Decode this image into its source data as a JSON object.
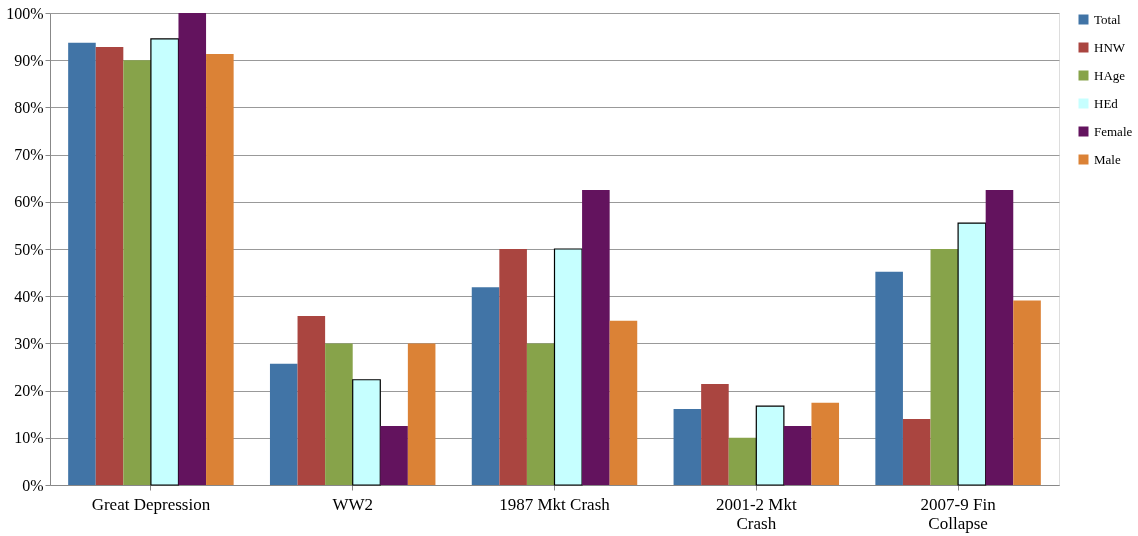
{
  "chart_data": {
    "type": "bar",
    "categories": [
      "Great Depression",
      "WW2",
      "1987 Mkt Crash",
      "2001-2 Mkt\nCrash",
      "2007-9 Fin\nCollapse"
    ],
    "series": [
      {
        "name": "Total",
        "color": "#4174a6",
        "values": [
          93.7,
          25.7,
          41.9,
          16.1,
          45.2
        ]
      },
      {
        "name": "HNW",
        "color": "#aa4540",
        "values": [
          92.8,
          35.8,
          50,
          21.4,
          14.0
        ]
      },
      {
        "name": "HAge",
        "color": "#87a34a",
        "values": [
          90,
          30,
          30,
          10,
          50
        ]
      },
      {
        "name": "HEd",
        "color": "#c6ffff",
        "values": [
          94.5,
          22.3,
          50,
          16.7,
          55.5
        ]
      },
      {
        "name": "Female",
        "color": "#63135e",
        "values": [
          100,
          12.5,
          62.5,
          12.5,
          62.5
        ]
      },
      {
        "name": "Male",
        "color": "#db8236",
        "values": [
          91.3,
          30,
          34.8,
          17.4,
          39.1
        ]
      }
    ],
    "ylim": [
      0,
      100
    ],
    "yticks": [
      {
        "value": 0,
        "label": "0%"
      },
      {
        "value": 10,
        "label": "10%"
      },
      {
        "value": 20,
        "label": "20%"
      },
      {
        "value": 30,
        "label": "30%"
      },
      {
        "value": 40,
        "label": "40%"
      },
      {
        "value": 50,
        "label": "50%"
      },
      {
        "value": 60,
        "label": "60%"
      },
      {
        "value": 70,
        "label": "70%"
      },
      {
        "value": 80,
        "label": "80%"
      },
      {
        "value": 90,
        "label": "90%"
      },
      {
        "value": 100,
        "label": "100%"
      }
    ],
    "grid": "y",
    "legend": "right"
  }
}
